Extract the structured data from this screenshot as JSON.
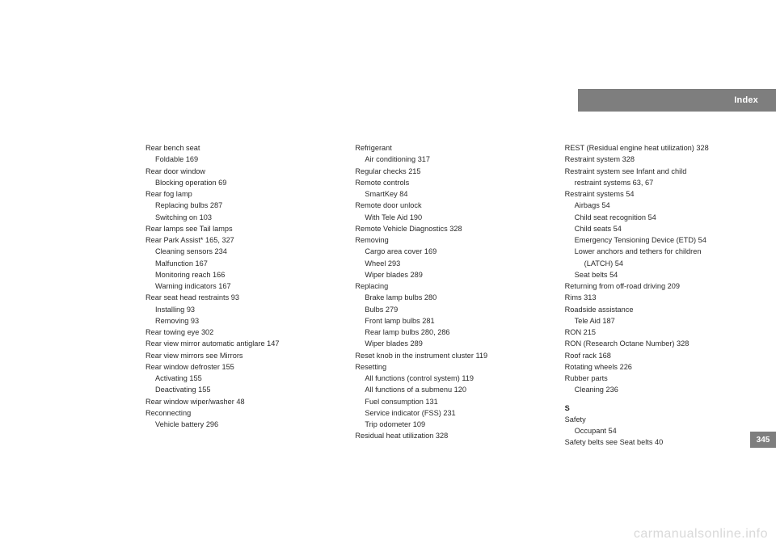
{
  "header": {
    "label": "Index"
  },
  "pagenum": "345",
  "watermark": "carmanualsonline.info",
  "columns": [
    {
      "lines": [
        {
          "t": "Rear bench seat",
          "lvl": 0
        },
        {
          "t": "Foldable 169",
          "lvl": 1
        },
        {
          "t": "Rear door window",
          "lvl": 0
        },
        {
          "t": "Blocking operation 69",
          "lvl": 1
        },
        {
          "t": "Rear fog lamp",
          "lvl": 0
        },
        {
          "t": "Replacing bulbs 287",
          "lvl": 1
        },
        {
          "t": "Switching on 103",
          "lvl": 1
        },
        {
          "t": "Rear lamps see Tail lamps",
          "lvl": 0
        },
        {
          "t": "Rear Park Assist* 165, 327",
          "lvl": 0
        },
        {
          "t": "Cleaning sensors 234",
          "lvl": 1
        },
        {
          "t": "Malfunction 167",
          "lvl": 1
        },
        {
          "t": "Monitoring reach 166",
          "lvl": 1
        },
        {
          "t": "Warning indicators 167",
          "lvl": 1
        },
        {
          "t": "Rear seat head restraints 93",
          "lvl": 0
        },
        {
          "t": "Installing 93",
          "lvl": 1
        },
        {
          "t": "Removing 93",
          "lvl": 1
        },
        {
          "t": "Rear towing eye 302",
          "lvl": 0
        },
        {
          "t": "Rear view mirror automatic antiglare 147",
          "lvl": 0
        },
        {
          "t": "Rear view mirrors see Mirrors",
          "lvl": 0
        },
        {
          "t": "Rear window defroster 155",
          "lvl": 0
        },
        {
          "t": "Activating 155",
          "lvl": 1
        },
        {
          "t": "Deactivating 155",
          "lvl": 1
        },
        {
          "t": "Rear window wiper/washer 48",
          "lvl": 0
        },
        {
          "t": "Reconnecting",
          "lvl": 0
        },
        {
          "t": "Vehicle battery 296",
          "lvl": 1
        }
      ]
    },
    {
      "lines": [
        {
          "t": "Refrigerant",
          "lvl": 0
        },
        {
          "t": "Air conditioning 317",
          "lvl": 1
        },
        {
          "t": "Regular checks 215",
          "lvl": 0
        },
        {
          "t": "Remote controls",
          "lvl": 0
        },
        {
          "t": "SmartKey 84",
          "lvl": 1
        },
        {
          "t": "Remote door unlock",
          "lvl": 0
        },
        {
          "t": "With Tele Aid 190",
          "lvl": 1
        },
        {
          "t": "Remote Vehicle Diagnostics 328",
          "lvl": 0
        },
        {
          "t": "Removing",
          "lvl": 0
        },
        {
          "t": "Cargo area cover 169",
          "lvl": 1
        },
        {
          "t": "Wheel 293",
          "lvl": 1
        },
        {
          "t": "Wiper blades 289",
          "lvl": 1
        },
        {
          "t": "Replacing",
          "lvl": 0
        },
        {
          "t": "Brake lamp bulbs 280",
          "lvl": 1
        },
        {
          "t": "Bulbs 279",
          "lvl": 1
        },
        {
          "t": "Front lamp bulbs 281",
          "lvl": 1
        },
        {
          "t": "Rear lamp bulbs 280, 286",
          "lvl": 1
        },
        {
          "t": "Wiper blades 289",
          "lvl": 1
        },
        {
          "t": "Reset knob in the instrument cluster 119",
          "lvl": 0
        },
        {
          "t": "Resetting",
          "lvl": 0
        },
        {
          "t": "All functions (control system) 119",
          "lvl": 1
        },
        {
          "t": "All functions of a submenu 120",
          "lvl": 1
        },
        {
          "t": "Fuel consumption 131",
          "lvl": 1
        },
        {
          "t": "Service indicator (FSS) 231",
          "lvl": 1
        },
        {
          "t": "Trip odometer 109",
          "lvl": 1
        },
        {
          "t": "Residual heat utilization 328",
          "lvl": 0
        }
      ]
    },
    {
      "lines": [
        {
          "t": "REST (Residual engine heat utilization) 328",
          "lvl": 0
        },
        {
          "t": "Restraint system 328",
          "lvl": 0
        },
        {
          "t": "Restraint system see Infant and child",
          "lvl": 0
        },
        {
          "t": "restraint systems 63, 67",
          "lvl": 1
        },
        {
          "t": "Restraint systems 54",
          "lvl": 0
        },
        {
          "t": "Airbags 54",
          "lvl": 1
        },
        {
          "t": "Child seat recognition 54",
          "lvl": 1
        },
        {
          "t": "Child seats 54",
          "lvl": 1
        },
        {
          "t": "Emergency Tensioning Device (ETD) 54",
          "lvl": 1
        },
        {
          "t": "Lower anchors and tethers for children",
          "lvl": 1
        },
        {
          "t": "(LATCH) 54",
          "lvl": 2
        },
        {
          "t": "Seat belts 54",
          "lvl": 1
        },
        {
          "t": "Returning from off-road driving 209",
          "lvl": 0
        },
        {
          "t": "Rims 313",
          "lvl": 0
        },
        {
          "t": "Roadside assistance",
          "lvl": 0
        },
        {
          "t": "Tele Aid 187",
          "lvl": 1
        },
        {
          "t": "RON 215",
          "lvl": 0
        },
        {
          "t": "RON (Research Octane Number) 328",
          "lvl": 0
        },
        {
          "t": "Roof rack 168",
          "lvl": 0
        },
        {
          "t": "Rotating wheels 226",
          "lvl": 0
        },
        {
          "t": "Rubber parts",
          "lvl": 0
        },
        {
          "t": "Cleaning 236",
          "lvl": 1
        },
        {
          "t": "S",
          "lvl": 0,
          "section": true
        },
        {
          "t": "Safety",
          "lvl": 0
        },
        {
          "t": "Occupant 54",
          "lvl": 1
        },
        {
          "t": "Safety belts see Seat belts 40",
          "lvl": 0
        }
      ]
    }
  ]
}
